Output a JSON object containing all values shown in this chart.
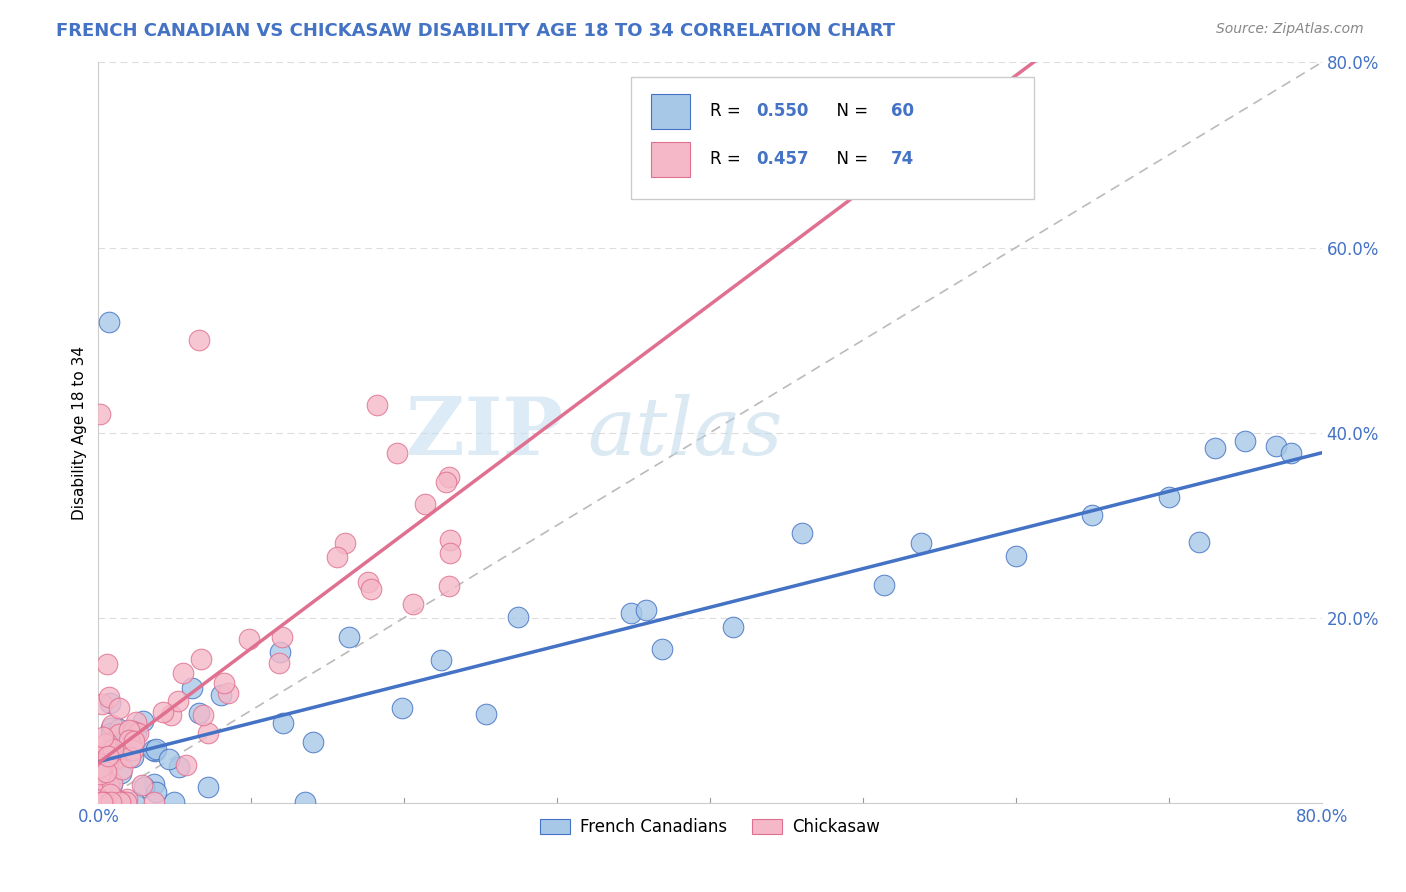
{
  "title": "FRENCH CANADIAN VS CHICKASAW DISABILITY AGE 18 TO 34 CORRELATION CHART",
  "source": "Source: ZipAtlas.com",
  "ylabel": "Disability Age 18 to 34",
  "xlim": [
    0.0,
    0.8
  ],
  "ylim": [
    0.0,
    0.8
  ],
  "r_french": 0.55,
  "n_french": 60,
  "r_chickasaw": 0.457,
  "n_chickasaw": 74,
  "color_french": "#a8c8e8",
  "color_chickasaw": "#f4b8c8",
  "line_color_french": "#4472c4",
  "line_color_chickasaw": "#e07090",
  "legend_label_french": "French Canadians",
  "legend_label_chickasaw": "Chickasaw",
  "watermark_zip": "ZIP",
  "watermark_atlas": "atlas",
  "title_color": "#4472c4",
  "axis_label_color": "#4472c4",
  "source_color": "#888888",
  "grid_color": "#dddddd",
  "spine_color": "#cccccc"
}
